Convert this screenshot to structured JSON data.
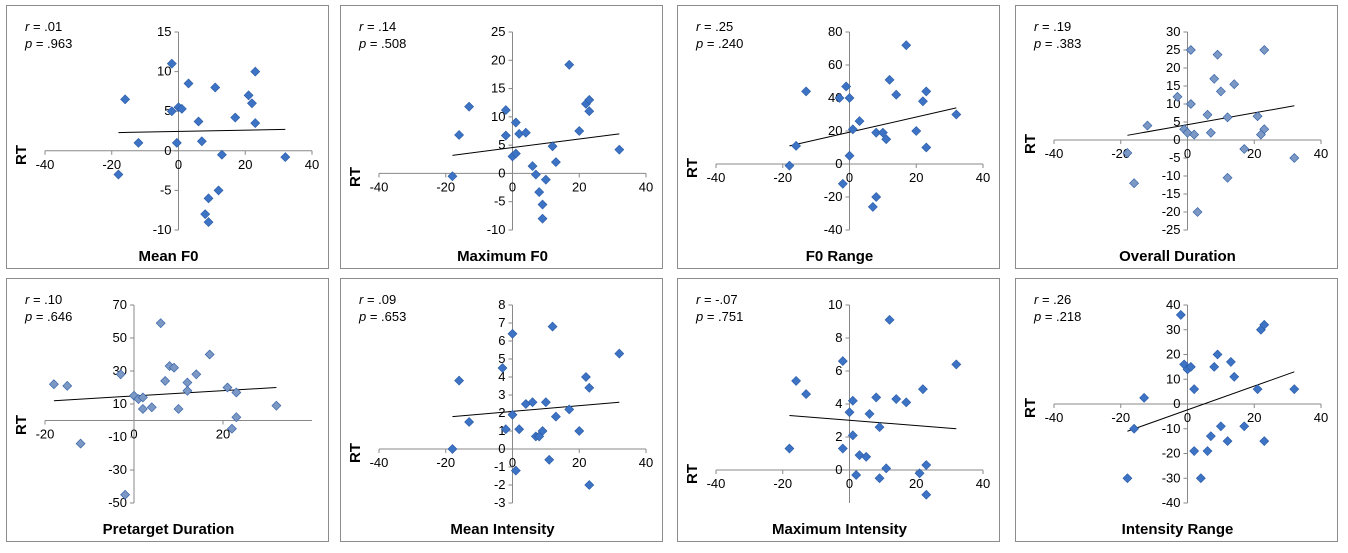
{
  "chart_data": [
    {
      "type": "scatter",
      "title": "",
      "xlabel": "Mean F0",
      "ylabel": "RT",
      "r_label": "r",
      "r_value": " = .01",
      "p_label": "p",
      "p_value": " = .963",
      "xlim": [
        -40,
        40
      ],
      "ylim": [
        -10,
        15
      ],
      "xticks": [
        -40,
        -20,
        0,
        20,
        40
      ],
      "yticks": [
        -10,
        -5,
        0,
        5,
        10,
        15
      ],
      "marker_color": "#3d73c4",
      "trend": [
        [
          -18,
          2.3
        ],
        [
          32,
          2.7
        ]
      ],
      "points": [
        [
          -16,
          6.5
        ],
        [
          -12,
          1
        ],
        [
          -18,
          -3
        ],
        [
          -2,
          11
        ],
        [
          -2,
          5
        ],
        [
          0,
          5.5
        ],
        [
          1,
          5.3
        ],
        [
          -0.5,
          1
        ],
        [
          3,
          8.5
        ],
        [
          6,
          3.7
        ],
        [
          7,
          1.2
        ],
        [
          11,
          8
        ],
        [
          13,
          -0.5
        ],
        [
          9,
          -6
        ],
        [
          8,
          -8
        ],
        [
          9,
          -9
        ],
        [
          12,
          -5
        ],
        [
          17,
          4.2
        ],
        [
          21,
          7
        ],
        [
          22,
          6
        ],
        [
          23,
          10
        ],
        [
          23,
          3.5
        ],
        [
          32,
          -0.8
        ]
      ]
    },
    {
      "type": "scatter",
      "title": "",
      "xlabel": "Maximum F0",
      "ylabel": "RT",
      "r_label": "r",
      "r_value": " = .14",
      "p_label": "p",
      "p_value": " = .508",
      "xlim": [
        -40,
        40
      ],
      "ylim": [
        -10,
        25
      ],
      "xticks": [
        -40,
        -20,
        0,
        20,
        40
      ],
      "yticks": [
        -10,
        -5,
        0,
        5,
        10,
        15,
        20,
        25
      ],
      "marker_color": "#3d73c4",
      "trend": [
        [
          -18,
          3.2
        ],
        [
          32,
          7
        ]
      ],
      "points": [
        [
          -16,
          6.8
        ],
        [
          -13,
          11.8
        ],
        [
          -18,
          -0.5
        ],
        [
          -2,
          11.2
        ],
        [
          -2,
          6.7
        ],
        [
          0,
          3
        ],
        [
          1,
          3.5
        ],
        [
          1,
          9
        ],
        [
          2,
          7
        ],
        [
          4,
          7.2
        ],
        [
          6,
          1.3
        ],
        [
          7,
          -0.2
        ],
        [
          8,
          -3.3
        ],
        [
          9,
          -5.5
        ],
        [
          9,
          -8
        ],
        [
          10,
          -1.1
        ],
        [
          12,
          4.8
        ],
        [
          13,
          2
        ],
        [
          17,
          19.2
        ],
        [
          20,
          7.5
        ],
        [
          22,
          12.3
        ],
        [
          23,
          13
        ],
        [
          23,
          11
        ],
        [
          32,
          4.2
        ]
      ]
    },
    {
      "type": "scatter",
      "title": "",
      "xlabel": "F0 Range",
      "ylabel": "RT",
      "r_label": "r",
      "r_value": " = .25",
      "p_label": "p",
      "p_value": " = .240",
      "xlim": [
        -40,
        40
      ],
      "ylim": [
        -40,
        80
      ],
      "xticks": [
        -40,
        -20,
        0,
        20,
        40
      ],
      "yticks": [
        -40,
        -20,
        0,
        20,
        40,
        60,
        80
      ],
      "marker_color": "#3d73c4",
      "trend": [
        [
          -18,
          11
        ],
        [
          32,
          34
        ]
      ],
      "points": [
        [
          -18,
          -1
        ],
        [
          -16,
          11
        ],
        [
          -13,
          44
        ],
        [
          -3,
          40
        ],
        [
          -2,
          -12
        ],
        [
          -1,
          47
        ],
        [
          0,
          5
        ],
        [
          0,
          40
        ],
        [
          1,
          21
        ],
        [
          3,
          26
        ],
        [
          7,
          -26
        ],
        [
          8,
          -20
        ],
        [
          8,
          19
        ],
        [
          10,
          19
        ],
        [
          11,
          15
        ],
        [
          12,
          51
        ],
        [
          14,
          42
        ],
        [
          17,
          72
        ],
        [
          20,
          20
        ],
        [
          22,
          38
        ],
        [
          23,
          44
        ],
        [
          23,
          10
        ],
        [
          32,
          30
        ]
      ]
    },
    {
      "type": "scatter",
      "title": "",
      "xlabel": "Overall Duration",
      "ylabel": "RT",
      "r_label": "r",
      "r_value": " = .19",
      "p_label": "p",
      "p_value": " = .383",
      "xlim": [
        -40,
        40
      ],
      "ylim": [
        -25,
        30
      ],
      "xticks": [
        -40,
        -20,
        0,
        20,
        40
      ],
      "yticks": [
        -25,
        -20,
        -15,
        -10,
        -5,
        0,
        5,
        10,
        15,
        20,
        25,
        30
      ],
      "marker_color": "#7b98c4",
      "trend": [
        [
          -18,
          1.3
        ],
        [
          32,
          9.5
        ]
      ],
      "points": [
        [
          -18,
          -3.6
        ],
        [
          -16,
          -12
        ],
        [
          -12,
          4
        ],
        [
          -3,
          12
        ],
        [
          -1,
          3
        ],
        [
          0,
          2
        ],
        [
          1,
          10
        ],
        [
          1,
          25
        ],
        [
          2,
          1.5
        ],
        [
          3,
          -20
        ],
        [
          6,
          7
        ],
        [
          7,
          2
        ],
        [
          8,
          17
        ],
        [
          9,
          23.7
        ],
        [
          10,
          13.5
        ],
        [
          12,
          6.3
        ],
        [
          12,
          -10.5
        ],
        [
          14,
          15.5
        ],
        [
          17,
          -2.5
        ],
        [
          21,
          6.6
        ],
        [
          23,
          25
        ],
        [
          23,
          3
        ],
        [
          22,
          1.5
        ],
        [
          32,
          -5
        ]
      ]
    },
    {
      "type": "scatter",
      "title": "",
      "xlabel": "Pretarget Duration",
      "ylabel": "RT",
      "r_label": "r",
      "r_value": " = .10",
      "p_label": "p",
      "p_value": " = .646",
      "xlim": [
        -20,
        40
      ],
      "ylim": [
        -50,
        70
      ],
      "xticks": [
        -20,
        0,
        20
      ],
      "yticks": [
        -50,
        -30,
        -10,
        10,
        30,
        50,
        70
      ],
      "marker_color": "#7b98c4",
      "trend": [
        [
          -18,
          12
        ],
        [
          32,
          20
        ]
      ],
      "points": [
        [
          -18,
          22
        ],
        [
          -15,
          21
        ],
        [
          -12,
          -14
        ],
        [
          -3,
          28
        ],
        [
          -2,
          -45
        ],
        [
          0,
          15
        ],
        [
          1,
          13
        ],
        [
          2,
          14
        ],
        [
          2,
          7
        ],
        [
          4,
          8
        ],
        [
          6,
          59
        ],
        [
          7,
          24
        ],
        [
          8,
          33
        ],
        [
          9,
          32
        ],
        [
          10,
          7
        ],
        [
          12,
          23
        ],
        [
          12,
          18
        ],
        [
          14,
          28
        ],
        [
          17,
          40
        ],
        [
          21,
          20
        ],
        [
          22,
          -5
        ],
        [
          23,
          17
        ],
        [
          23,
          2
        ],
        [
          32,
          9
        ]
      ]
    },
    {
      "type": "scatter",
      "title": "",
      "xlabel": "Mean Intensity",
      "ylabel": "RT",
      "r_label": "r",
      "r_value": " = .09",
      "p_label": "p",
      "p_value": " = .653",
      "xlim": [
        -40,
        40
      ],
      "ylim": [
        -3,
        8
      ],
      "xticks": [
        -40,
        -20,
        0,
        20,
        40
      ],
      "yticks": [
        -3,
        -2,
        -1,
        0,
        1,
        2,
        3,
        4,
        5,
        6,
        7,
        8
      ],
      "marker_color": "#3d73c4",
      "trend": [
        [
          -18,
          1.8
        ],
        [
          32,
          2.6
        ]
      ],
      "points": [
        [
          -18,
          0
        ],
        [
          -16,
          3.8
        ],
        [
          -13,
          1.5
        ],
        [
          -3,
          4.5
        ],
        [
          -2,
          1.1
        ],
        [
          0,
          1.9
        ],
        [
          0,
          6.4
        ],
        [
          1,
          -1.2
        ],
        [
          2,
          1.1
        ],
        [
          4,
          2.5
        ],
        [
          6,
          2.6
        ],
        [
          7,
          0.7
        ],
        [
          8,
          0.7
        ],
        [
          9,
          1
        ],
        [
          10,
          2.6
        ],
        [
          11,
          -0.6
        ],
        [
          12,
          6.8
        ],
        [
          13,
          1.8
        ],
        [
          17,
          2.2
        ],
        [
          20,
          1
        ],
        [
          22,
          4
        ],
        [
          23,
          3.4
        ],
        [
          23,
          -2
        ],
        [
          32,
          5.3
        ]
      ]
    },
    {
      "type": "scatter",
      "title": "",
      "xlabel": "Maximum Intensity",
      "ylabel": "RT",
      "r_label": "r",
      "r_value": " = -.07",
      "p_label": "p",
      "p_value": " = .751",
      "xlim": [
        -40,
        40
      ],
      "ylim": [
        -2,
        10
      ],
      "xticks": [
        -40,
        -20,
        0,
        20,
        40
      ],
      "yticks": [
        0,
        2,
        4,
        6,
        8,
        10
      ],
      "marker_color": "#3d73c4",
      "trend": [
        [
          -18,
          3.3
        ],
        [
          32,
          2.5
        ]
      ],
      "points": [
        [
          -18,
          1.3
        ],
        [
          -16,
          5.4
        ],
        [
          -13,
          4.6
        ],
        [
          -2,
          1.3
        ],
        [
          -2,
          6.6
        ],
        [
          0,
          3.5
        ],
        [
          1,
          4.2
        ],
        [
          1,
          2.1
        ],
        [
          2,
          -0.3
        ],
        [
          3,
          0.9
        ],
        [
          5,
          0.8
        ],
        [
          6,
          3.4
        ],
        [
          8,
          4.4
        ],
        [
          9,
          2.6
        ],
        [
          9,
          -0.5
        ],
        [
          11,
          0.1
        ],
        [
          12,
          9.1
        ],
        [
          14,
          4.3
        ],
        [
          17,
          4.1
        ],
        [
          21,
          -0.2
        ],
        [
          22,
          4.9
        ],
        [
          23,
          0.3
        ],
        [
          23,
          -1.5
        ],
        [
          32,
          6.4
        ]
      ]
    },
    {
      "type": "scatter",
      "title": "",
      "xlabel": "Intensity Range",
      "ylabel": "RT",
      "r_label": "r",
      "r_value": " = .26",
      "p_label": "p",
      "p_value": " = .218",
      "xlim": [
        -40,
        40
      ],
      "ylim": [
        -40,
        40
      ],
      "xticks": [
        -40,
        -20,
        0,
        20,
        40
      ],
      "yticks": [
        -40,
        -30,
        -20,
        -10,
        0,
        10,
        20,
        30,
        40
      ],
      "marker_color": "#3d73c4",
      "trend": [
        [
          -18,
          -11
        ],
        [
          32,
          13
        ]
      ],
      "points": [
        [
          -18,
          -30
        ],
        [
          -16,
          -10
        ],
        [
          -13,
          2.5
        ],
        [
          -2,
          36
        ],
        [
          -1,
          16
        ],
        [
          0,
          14
        ],
        [
          1,
          15
        ],
        [
          2,
          6
        ],
        [
          2,
          -19
        ],
        [
          4,
          -30
        ],
        [
          6,
          -19
        ],
        [
          7,
          -13
        ],
        [
          8,
          15
        ],
        [
          9,
          20
        ],
        [
          10,
          -9
        ],
        [
          12,
          -15
        ],
        [
          13,
          17
        ],
        [
          14,
          11
        ],
        [
          17,
          -9
        ],
        [
          21,
          6
        ],
        [
          22,
          30
        ],
        [
          23,
          32
        ],
        [
          23,
          -15
        ],
        [
          32,
          6
        ]
      ]
    }
  ]
}
